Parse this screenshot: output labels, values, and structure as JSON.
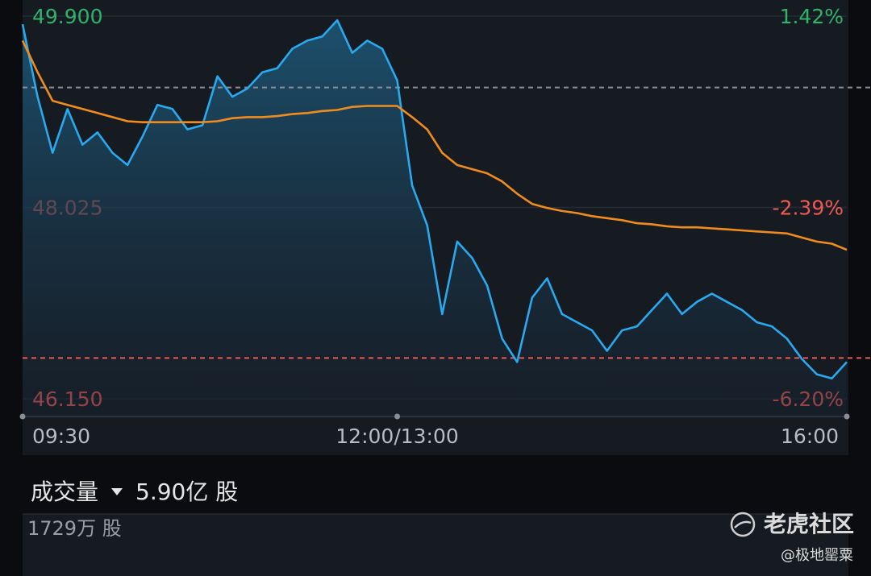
{
  "chart_data": {
    "type": "line",
    "categories": [
      "09:30",
      null,
      null,
      null,
      null,
      null,
      null,
      null,
      null,
      null,
      null,
      null,
      null,
      null,
      null,
      null,
      null,
      null,
      null,
      null,
      null,
      null,
      null,
      null,
      null,
      "12:00/13:00",
      null,
      null,
      null,
      null,
      null,
      null,
      null,
      null,
      null,
      null,
      null,
      null,
      null,
      null,
      null,
      null,
      null,
      null,
      null,
      null,
      null,
      null,
      null,
      null,
      null,
      null,
      null,
      null,
      null,
      "16:00"
    ],
    "series": [
      {
        "color": "#29a9f0",
        "values": [
          49.82,
          49.11,
          48.56,
          48.99,
          48.64,
          48.76,
          48.56,
          48.44,
          48.72,
          49.03,
          48.99,
          48.79,
          48.83,
          49.31,
          49.11,
          49.19,
          49.35,
          49.39,
          49.58,
          49.66,
          49.7,
          49.86,
          49.54,
          49.66,
          49.58,
          49.27,
          48.24,
          47.85,
          46.98,
          47.69,
          47.53,
          47.26,
          46.74,
          46.51,
          47.14,
          47.33,
          46.98,
          46.9,
          46.82,
          46.62,
          46.82,
          46.86,
          47.02,
          47.18,
          46.98,
          47.1,
          47.18,
          47.1,
          47.02,
          46.9,
          46.86,
          46.74,
          46.54,
          46.39,
          46.35,
          46.51
        ]
      },
      {
        "color": "#f08c1e",
        "values": [
          49.66,
          49.35,
          49.07,
          49.03,
          48.99,
          48.95,
          48.91,
          48.87,
          48.86,
          48.86,
          48.86,
          48.86,
          48.86,
          48.87,
          48.9,
          48.91,
          48.91,
          48.92,
          48.94,
          48.95,
          48.97,
          48.98,
          49.01,
          49.02,
          49.02,
          49.02,
          48.91,
          48.79,
          48.56,
          48.44,
          48.4,
          48.36,
          48.28,
          48.16,
          48.06,
          48.02,
          47.99,
          47.97,
          47.94,
          47.92,
          47.9,
          47.87,
          47.86,
          47.84,
          47.83,
          47.83,
          47.82,
          47.81,
          47.8,
          47.79,
          47.78,
          47.77,
          47.73,
          47.69,
          47.67,
          47.61
        ]
      }
    ],
    "ylim": [
      46.15,
      49.9
    ],
    "yticks": [
      {
        "value": 49.9,
        "label": "49.900"
      },
      {
        "value": 48.025,
        "label": "48.025"
      },
      {
        "value": 46.15,
        "label": "46.150"
      }
    ],
    "y2lim": [
      -6.2,
      1.42
    ],
    "y2ticks": [
      {
        "value": 1.42,
        "label": "1.42%"
      },
      {
        "value": -2.39,
        "label": "-2.39%"
      },
      {
        "value": -6.2,
        "label": "-6.20%"
      }
    ],
    "prev_close": 49.2,
    "alert_line": 46.55,
    "up_color": "#2fb36a",
    "down_color": "#ee5a52",
    "grid": true
  },
  "volume_panel": {
    "label": "成交量",
    "total": "5.90亿 股",
    "max": "1729万 股"
  },
  "watermark": {
    "brand": "老虎社区",
    "user": "@极地罂粟"
  }
}
